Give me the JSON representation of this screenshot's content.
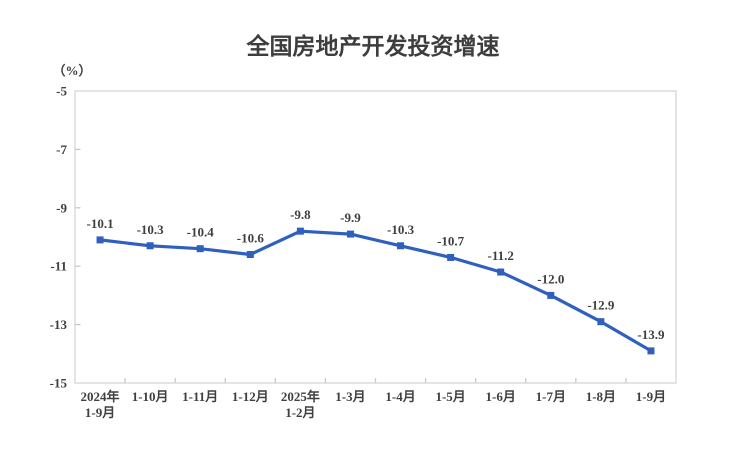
{
  "page": {
    "background": "#FFFFFF"
  },
  "chart_data": {
    "type": "line",
    "title": "全国房地产开发投资增速",
    "unit_label": "（%）",
    "categories": [
      [
        "2024年",
        "1-9月"
      ],
      [
        "1-10月"
      ],
      [
        "1-11月"
      ],
      [
        "1-12月"
      ],
      [
        "2025年",
        "1-2月"
      ],
      [
        "1-3月"
      ],
      [
        "1-4月"
      ],
      [
        "1-5月"
      ],
      [
        "1-6月"
      ],
      [
        "1-7月"
      ],
      [
        "1-8月"
      ],
      [
        "1-9月"
      ]
    ],
    "values": [
      -10.1,
      -10.3,
      -10.4,
      -10.6,
      -9.8,
      -9.9,
      -10.3,
      -10.7,
      -11.2,
      -12.0,
      -12.9,
      -13.9
    ],
    "data_labels": [
      "-10.1",
      "-10.3",
      "-10.4",
      "-10.6",
      "-9.8",
      "-9.9",
      "-10.3",
      "-10.7",
      "-11.2",
      "-12.0",
      "-12.9",
      "-13.9"
    ],
    "xlabel": "",
    "ylabel": "（%）",
    "ylim": [
      -15,
      -5
    ],
    "y_ticks": [
      -5,
      -7,
      -9,
      -11,
      -13,
      -15
    ],
    "y_tick_labels": [
      "-5",
      "-7",
      "-9",
      "-11",
      "-13",
      "-15"
    ],
    "grid": false,
    "legend_position": "none",
    "marker": "square",
    "colors": {
      "line": "#2F5FBF",
      "marker": "#2F5FBF",
      "plot_border": "#D9D9D9",
      "tick": "#C9C9C9",
      "axis_text": "#3F3F3F",
      "title_text": "#3D3D3D"
    }
  }
}
